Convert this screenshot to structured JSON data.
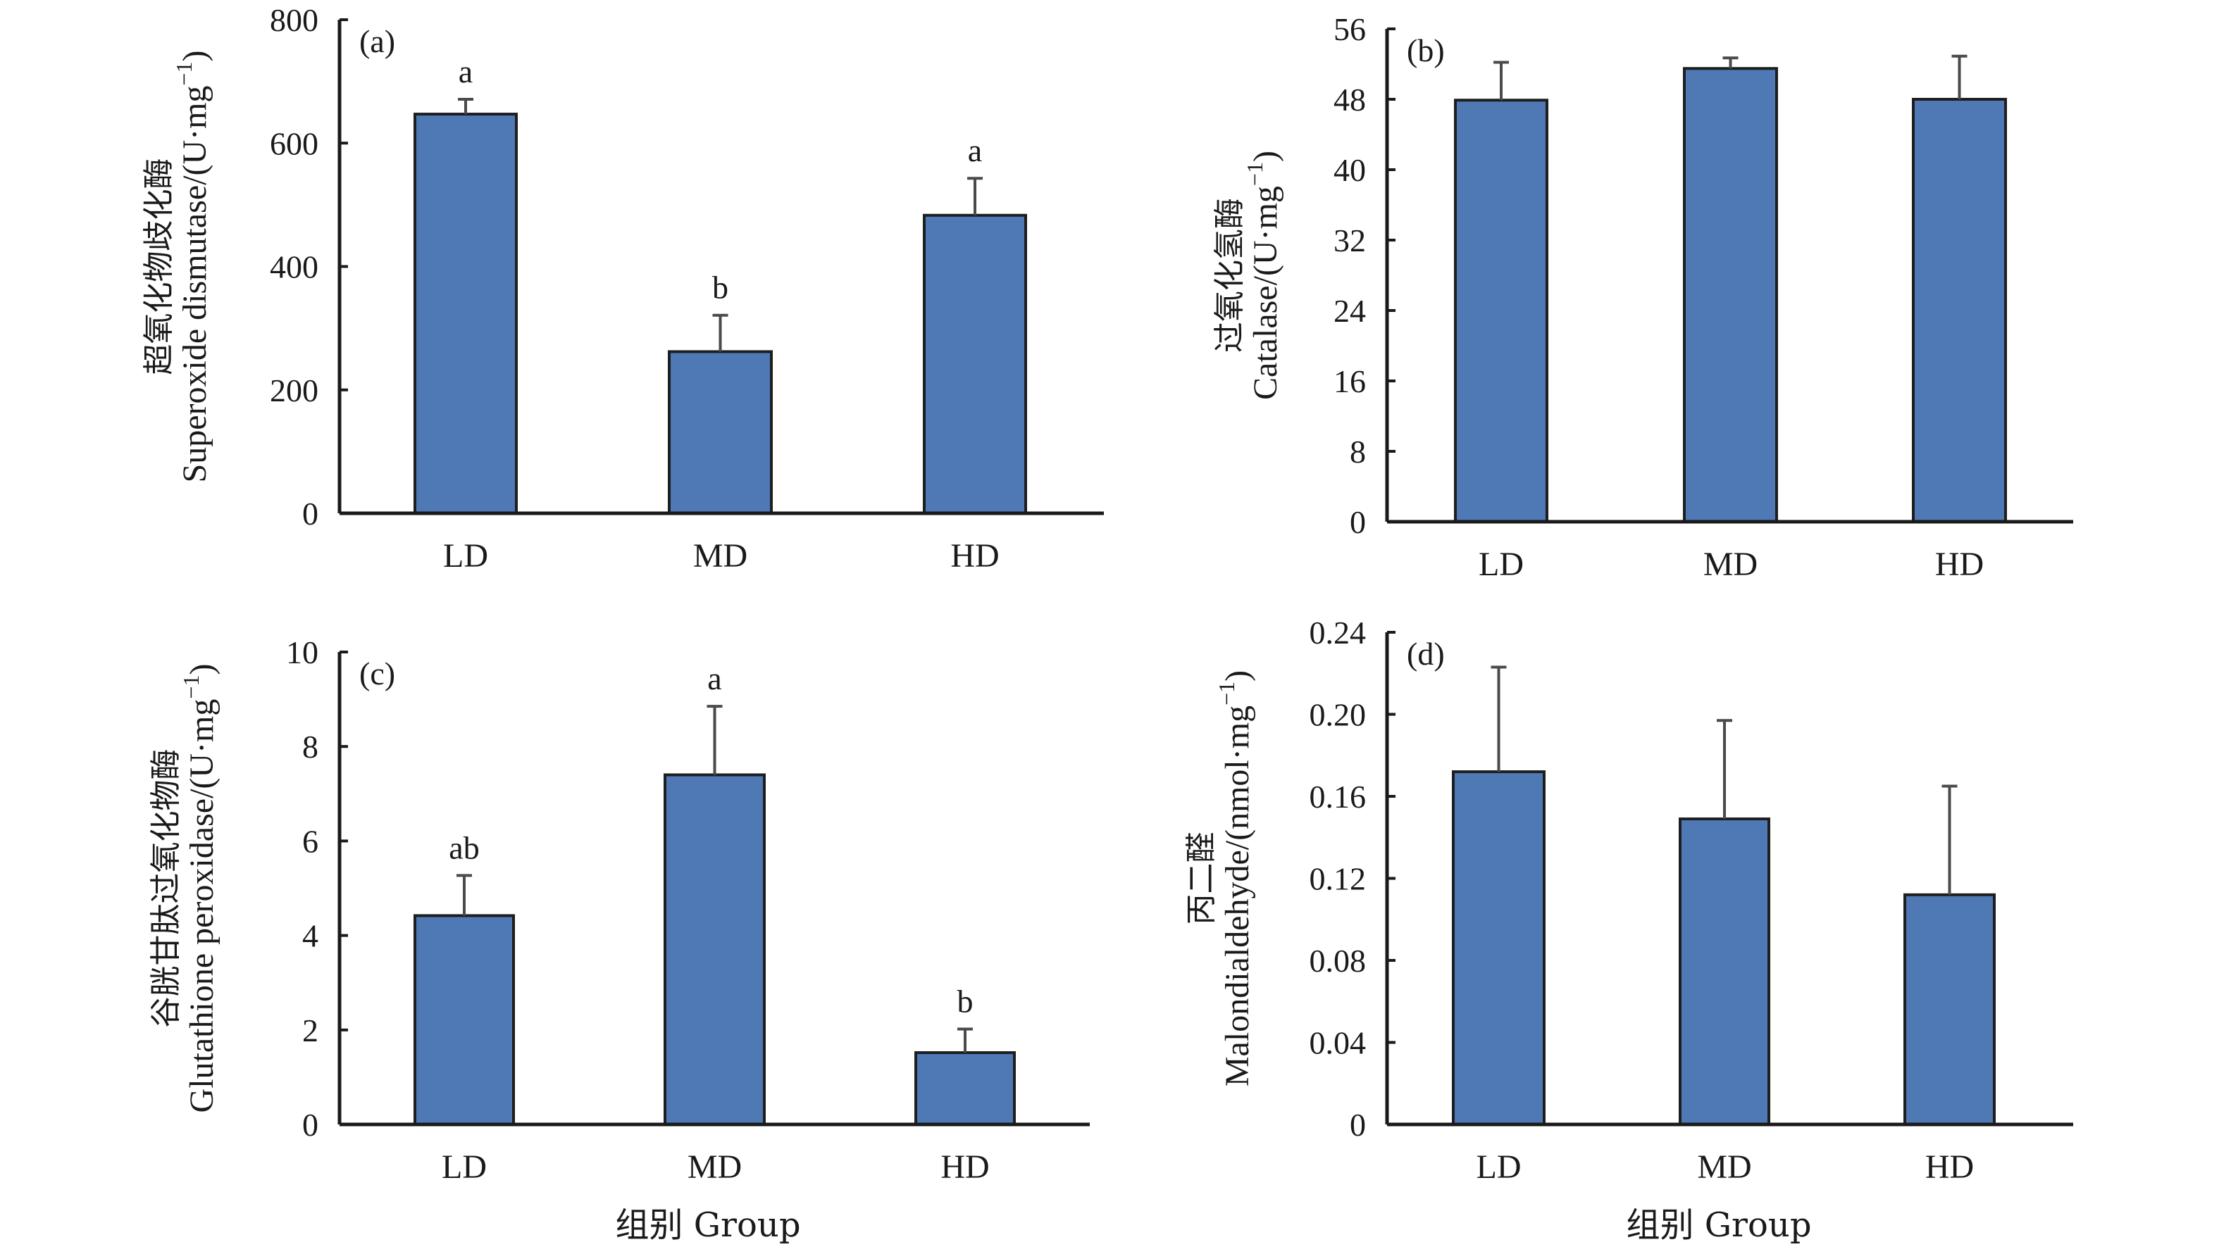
{
  "figure": {
    "bar_color": "#4f79b5",
    "x_axis_title": "组别 Group"
  },
  "chart_data": [
    {
      "type": "bar",
      "panel": "(a)",
      "title": "",
      "ylabel_cn": "超氧化物歧化酶",
      "ylabel_en": "Superoxide dismutase/(U·mg",
      "ylabel_sup": "−1",
      "ylabel_close": ")",
      "xlabel": "组别 Group",
      "categories": [
        "LD",
        "MD",
        "HD"
      ],
      "values": [
        647,
        262,
        483
      ],
      "error_upper": [
        671,
        321,
        543
      ],
      "significance": [
        "a",
        "b",
        "a"
      ],
      "ylim": [
        0,
        800
      ],
      "yticks": [
        0,
        200,
        400,
        600,
        800
      ],
      "ytick_labels": [
        "0",
        "200",
        "400",
        "600",
        "800"
      ],
      "grid": false,
      "legend": "none"
    },
    {
      "type": "bar",
      "panel": "(b)",
      "title": "",
      "ylabel_cn": "过氧化氢酶",
      "ylabel_en": "Catalase/(U·mg",
      "ylabel_sup": "−1",
      "ylabel_close": ")",
      "xlabel": "",
      "categories": [
        "LD",
        "MD",
        "HD"
      ],
      "values": [
        47.9,
        51.5,
        48.0
      ],
      "error_upper": [
        52.2,
        52.7,
        52.9
      ],
      "significance": [
        "",
        "",
        ""
      ],
      "ylim": [
        0,
        56
      ],
      "yticks": [
        0,
        8,
        16,
        24,
        32,
        40,
        48,
        56
      ],
      "ytick_labels": [
        "0",
        "8",
        "16",
        "24",
        "32",
        "40",
        "48",
        "56"
      ],
      "grid": false,
      "legend": "none"
    },
    {
      "type": "bar",
      "panel": "(c)",
      "title": "",
      "ylabel_cn": "谷胱甘肽过氧化物酶",
      "ylabel_en": "Glutathione peroxidase/(U·mg",
      "ylabel_sup": "−1",
      "ylabel_close": ")",
      "xlabel": "组别 Group",
      "categories": [
        "LD",
        "MD",
        "HD"
      ],
      "values": [
        4.42,
        7.4,
        1.52
      ],
      "error_upper": [
        5.27,
        8.85,
        2.02
      ],
      "significance": [
        "ab",
        "a",
        "b"
      ],
      "ylim": [
        0,
        10
      ],
      "yticks": [
        0,
        2,
        4,
        6,
        8,
        10
      ],
      "ytick_labels": [
        "0",
        "2",
        "4",
        "6",
        "8",
        "10"
      ],
      "grid": false,
      "legend": "none"
    },
    {
      "type": "bar",
      "panel": "(d)",
      "title": "",
      "ylabel_cn": "丙二醛",
      "ylabel_en": "Malondialdehyde/(nmol·mg",
      "ylabel_sup": "−1",
      "ylabel_close": ")",
      "xlabel": "组别 Group",
      "categories": [
        "LD",
        "MD",
        "HD"
      ],
      "values": [
        0.172,
        0.149,
        0.112
      ],
      "error_upper": [
        0.223,
        0.197,
        0.165
      ],
      "significance": [
        "",
        "",
        ""
      ],
      "ylim": [
        0,
        0.24
      ],
      "yticks": [
        0,
        0.04,
        0.08,
        0.12,
        0.16,
        0.2,
        0.24
      ],
      "ytick_labels": [
        "0",
        "0.04",
        "0.08",
        "0.12",
        "0.16",
        "0.20",
        "0.24"
      ],
      "grid": false,
      "legend": "none"
    }
  ]
}
